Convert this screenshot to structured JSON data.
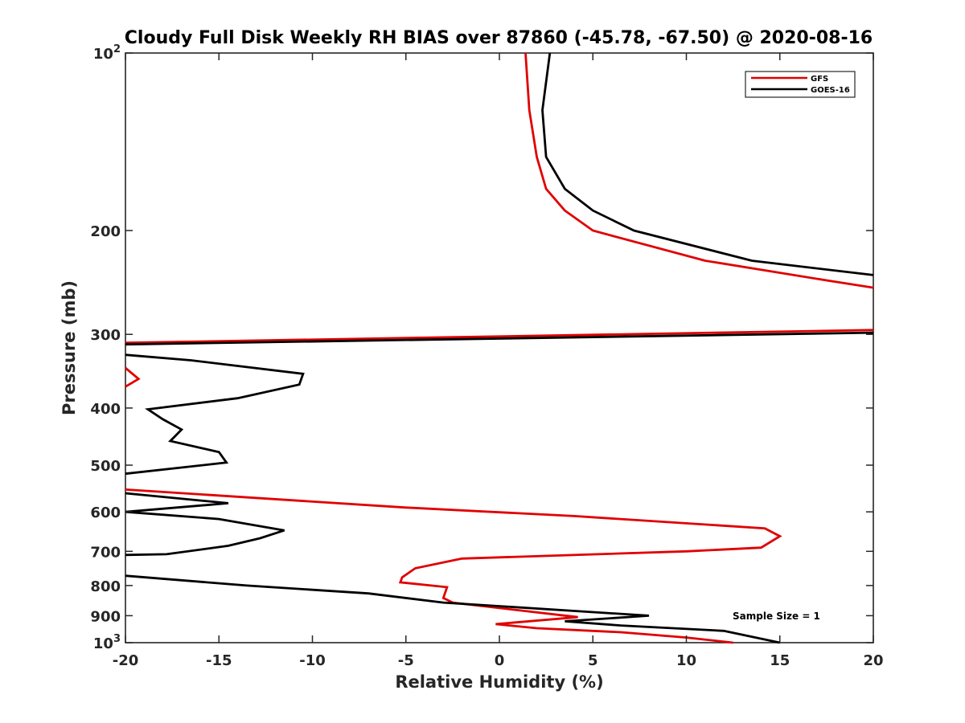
{
  "chart_data": {
    "type": "line",
    "title": "Cloudy Full Disk Weekly RH BIAS over 87860 (-45.78, -67.50) @ 2020-08-16",
    "xlabel": "Relative Humidity (%)",
    "ylabel": "Pressure (mb)",
    "xlim": [
      -20,
      20
    ],
    "ylim": [
      100,
      1000
    ],
    "yscale": "log",
    "y_reversed": true,
    "x_ticks": [
      "-20",
      "-15",
      "-10",
      "-5",
      "0",
      "5",
      "10",
      "15",
      "20"
    ],
    "y_ticks": [
      {
        "value": 100,
        "base": "10",
        "exp": "2"
      },
      {
        "value": 200,
        "label": "200"
      },
      {
        "value": 300,
        "label": "300"
      },
      {
        "value": 400,
        "label": "400"
      },
      {
        "value": 500,
        "label": "500"
      },
      {
        "value": 600,
        "label": "600"
      },
      {
        "value": 700,
        "label": "700"
      },
      {
        "value": 800,
        "label": "800"
      },
      {
        "value": 900,
        "label": "900"
      },
      {
        "value": 1000,
        "base": "10",
        "exp": "3"
      }
    ],
    "grid": false,
    "legend_position": "top-right",
    "annotation": "Sample Size = 1",
    "series": [
      {
        "name": "GFS",
        "color": "#e00000",
        "segments": [
          [
            [
              1.4,
              100
            ],
            [
              1.6,
              125
            ],
            [
              2.0,
              150
            ],
            [
              2.5,
              170
            ],
            [
              3.5,
              185
            ],
            [
              5.0,
              200
            ],
            [
              11.0,
              225
            ],
            [
              17.5,
              243
            ],
            [
              20.0,
              250
            ]
          ],
          [
            [
              20.0,
              295
            ],
            [
              -20.0,
              310
            ]
          ],
          [
            [
              -20.0,
              342
            ],
            [
              -19.3,
              357
            ],
            [
              -20.0,
              368
            ]
          ],
          [
            [
              -20.0,
              550
            ],
            [
              -5.0,
              590
            ],
            [
              4.0,
              610
            ],
            [
              14.2,
              640
            ],
            [
              15.0,
              660
            ],
            [
              14.0,
              690
            ],
            [
              10.0,
              700
            ],
            [
              -2.0,
              720
            ],
            [
              -4.5,
              748
            ],
            [
              -5.2,
              775
            ],
            [
              -5.3,
              790
            ],
            [
              -2.8,
              805
            ],
            [
              -3.0,
              840
            ],
            [
              -2.5,
              855
            ],
            [
              4.2,
              905
            ],
            [
              -0.2,
              930
            ],
            [
              2.0,
              945
            ],
            [
              6.5,
              960
            ],
            [
              10.0,
              980
            ],
            [
              12.5,
              1000
            ]
          ]
        ]
      },
      {
        "name": "GOES-16",
        "color": "#000000",
        "segments": [
          [
            [
              2.7,
              100
            ],
            [
              2.3,
              125
            ],
            [
              2.5,
              150
            ],
            [
              3.5,
              170
            ],
            [
              5.0,
              185
            ],
            [
              7.2,
              200
            ],
            [
              13.5,
              225
            ],
            [
              20.0,
              238
            ]
          ],
          [
            [
              20.0,
              298
            ],
            [
              -20.0,
              312
            ]
          ],
          [
            [
              -20.0,
              325
            ],
            [
              -16.5,
              332
            ],
            [
              -10.5,
              350
            ],
            [
              -10.7,
              365
            ],
            [
              -14.0,
              385
            ],
            [
              -18.8,
              402
            ],
            [
              -18.0,
              418
            ],
            [
              -17.0,
              435
            ],
            [
              -17.6,
              455
            ],
            [
              -15.0,
              475
            ],
            [
              -14.6,
              495
            ],
            [
              -20.0,
              517
            ]
          ],
          [
            [
              -20.0,
              558
            ],
            [
              -14.5,
              580
            ],
            [
              -20.0,
              600
            ],
            [
              -15.0,
              617
            ],
            [
              -11.5,
              645
            ],
            [
              -12.8,
              665
            ],
            [
              -14.5,
              685
            ],
            [
              -17.8,
              708
            ],
            [
              -20.0,
              710
            ]
          ],
          [
            [
              -20.0,
              770
            ],
            [
              -13.5,
              800
            ],
            [
              -7.0,
              825
            ],
            [
              -3.0,
              855
            ],
            [
              8.0,
              900
            ],
            [
              3.5,
              920
            ],
            [
              6.5,
              935
            ],
            [
              12.0,
              955
            ],
            [
              15.0,
              1000
            ]
          ]
        ]
      }
    ]
  }
}
